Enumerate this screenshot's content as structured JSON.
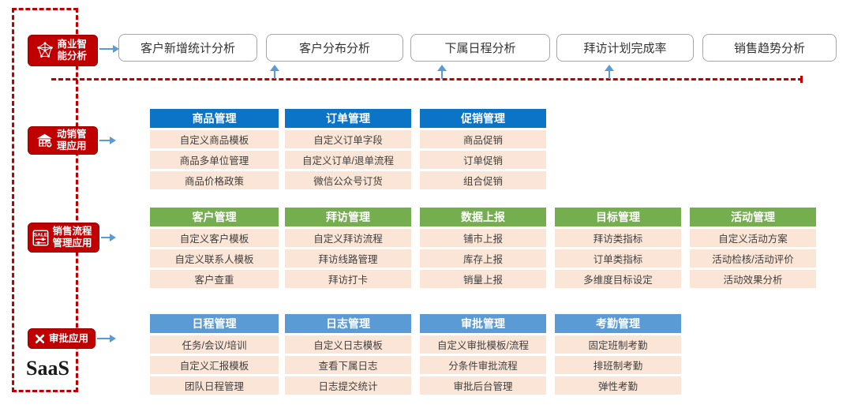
{
  "palette": {
    "accent_red": "#C00000",
    "deep_blue_header": "#0B74C6",
    "green_header": "#74AE4E",
    "light_blue_header": "#5B9BD5",
    "cell_bg": "#FBE5D6",
    "arrow_blue": "#5B9BD5"
  },
  "sidebar": {
    "saas_label": "SaaS",
    "badges": [
      {
        "label": "商业智能分析",
        "icon": "network-polyhedron-icon"
      },
      {
        "label": "动销管理应用",
        "icon": "storefront-icon"
      },
      {
        "label": "销售流程管理应用",
        "icon": "sale-sliders-icon"
      },
      {
        "label": "审批应用",
        "icon": "x-mark-icon"
      }
    ]
  },
  "bi_boxes": [
    "客户新增统计分析",
    "客户分布分析",
    "下属日程分析",
    "拜访计划完成率",
    "销售趋势分析"
  ],
  "groups": [
    {
      "badge": "动销管理应用",
      "header_color": "#0B74C6",
      "tables": [
        {
          "header": "商品管理",
          "rows": [
            "自定义商品模板",
            "商品多单位管理",
            "商品价格政策"
          ]
        },
        {
          "header": "订单管理",
          "rows": [
            "自定义订单字段",
            "自定义订单/退单流程",
            "微信公众号订货"
          ]
        },
        {
          "header": "促销管理",
          "rows": [
            "商品促销",
            "订单促销",
            "组合促销"
          ]
        }
      ]
    },
    {
      "badge": "销售流程管理应用",
      "header_color": "#74AE4E",
      "tables": [
        {
          "header": "客户管理",
          "rows": [
            "自定义客户模板",
            "自定义联系人模板",
            "客户查重"
          ]
        },
        {
          "header": "拜访管理",
          "rows": [
            "自定义拜访流程",
            "拜访线路管理",
            "拜访打卡"
          ]
        },
        {
          "header": "数据上报",
          "rows": [
            "铺市上报",
            "库存上报",
            "销量上报"
          ]
        },
        {
          "header": "目标管理",
          "rows": [
            "拜访类指标",
            "订单类指标",
            "多维度目标设定"
          ]
        },
        {
          "header": "活动管理",
          "rows": [
            "自定义活动方案",
            "活动检核/活动评价",
            "活动效果分析"
          ]
        }
      ]
    },
    {
      "badge": "审批应用",
      "header_color": "#5B9BD5",
      "tables": [
        {
          "header": "日程管理",
          "rows": [
            "任务/会议/培训",
            "自定义汇报模板",
            "团队日程管理"
          ]
        },
        {
          "header": "日志管理",
          "rows": [
            "自定义日志模板",
            "查看下属日志",
            "日志提交统计"
          ]
        },
        {
          "header": "审批管理",
          "rows": [
            "自定义审批模板/流程",
            "分条件审批流程",
            "审批后台管理"
          ]
        },
        {
          "header": "考勤管理",
          "rows": [
            "固定班制考勤",
            "排班制考勤",
            "弹性考勤"
          ]
        }
      ]
    }
  ]
}
